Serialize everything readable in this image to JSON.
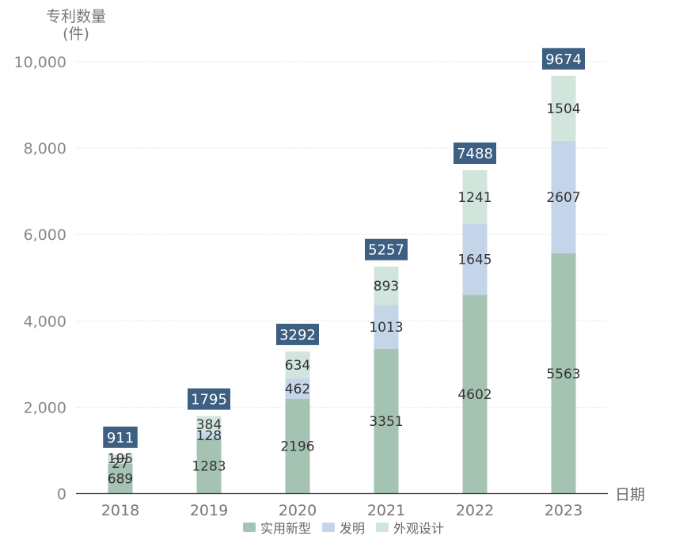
{
  "chart_data": {
    "type": "bar",
    "stacked": true,
    "ylabel_line1": "专利数量",
    "ylabel_line2": "(件)",
    "xlabel": "日期",
    "categories": [
      "2018",
      "2019",
      "2020",
      "2021",
      "2022",
      "2023"
    ],
    "series": [
      {
        "name": "实用新型",
        "color": "#a5c3b2",
        "values": [
          689,
          1283,
          2196,
          3351,
          4602,
          5563
        ]
      },
      {
        "name": "发明",
        "color": "#c4d5ea",
        "values": [
          27,
          128,
          462,
          1013,
          1645,
          2607
        ]
      },
      {
        "name": "外观设计",
        "color": "#d1e5dd",
        "values": [
          195,
          384,
          634,
          893,
          1241,
          1504
        ]
      }
    ],
    "totals": [
      911,
      1795,
      3292,
      5257,
      7488,
      9674
    ],
    "ylim": [
      0,
      10000
    ],
    "yticks": [
      0,
      2000,
      4000,
      6000,
      8000,
      10000
    ],
    "ytick_labels": [
      "0",
      "2,000",
      "4,000",
      "6,000",
      "8,000",
      "10,000"
    ],
    "grid": true,
    "legend_position": "bottom",
    "total_label_color": "#3c5f82"
  }
}
